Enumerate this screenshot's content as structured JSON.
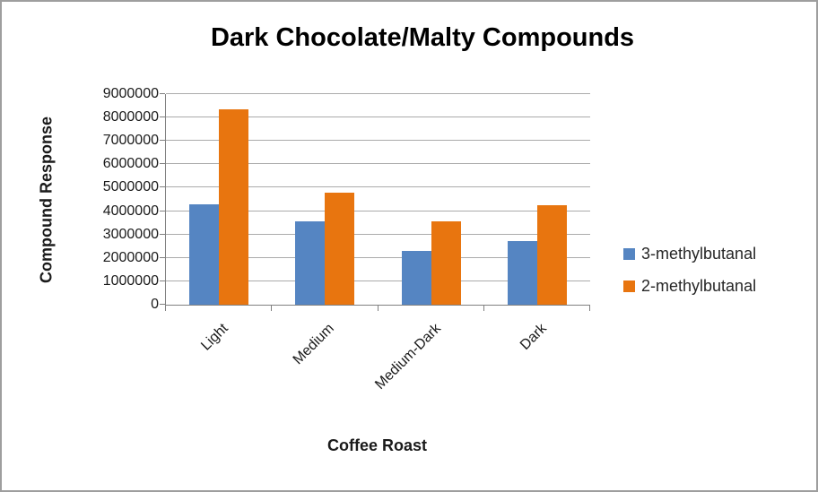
{
  "chart_data": {
    "type": "bar",
    "title": "Dark Chocolate/Malty Compounds",
    "xlabel": "Coffee Roast",
    "ylabel": "Compound Response",
    "categories": [
      "Light",
      "Medium",
      "Medium-Dark",
      "Dark"
    ],
    "series": [
      {
        "name": "3-methylbutanal",
        "color": "#5585C2",
        "values": [
          4300000,
          3550000,
          2300000,
          2700000
        ]
      },
      {
        "name": "2-methylbutanal",
        "color": "#E8750F",
        "values": [
          8350000,
          4800000,
          3550000,
          4250000
        ]
      }
    ],
    "ylim": [
      0,
      9000000
    ],
    "y_ticks": [
      0,
      1000000,
      2000000,
      3000000,
      4000000,
      5000000,
      6000000,
      7000000,
      8000000,
      9000000
    ],
    "y_tick_labels": [
      "0",
      "1000000",
      "2000000",
      "3000000",
      "4000000",
      "5000000",
      "6000000",
      "7000000",
      "8000000",
      "9000000"
    ],
    "grid": true,
    "legend_position": "right"
  },
  "colors": {
    "gridline": "#ABABAB",
    "axis": "#808080",
    "frame_border": "#9E9E9E",
    "text": "#1A1A1A"
  }
}
